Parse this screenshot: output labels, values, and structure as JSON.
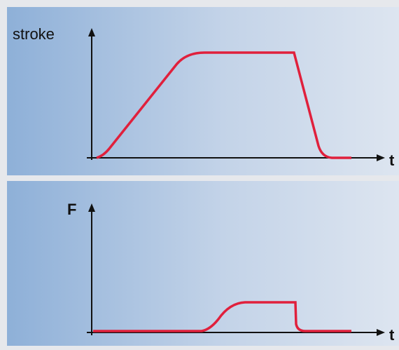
{
  "panels": [
    {
      "y_label": "stroke",
      "x_label": "t"
    },
    {
      "y_label": "F",
      "x_label": "t"
    }
  ]
}
